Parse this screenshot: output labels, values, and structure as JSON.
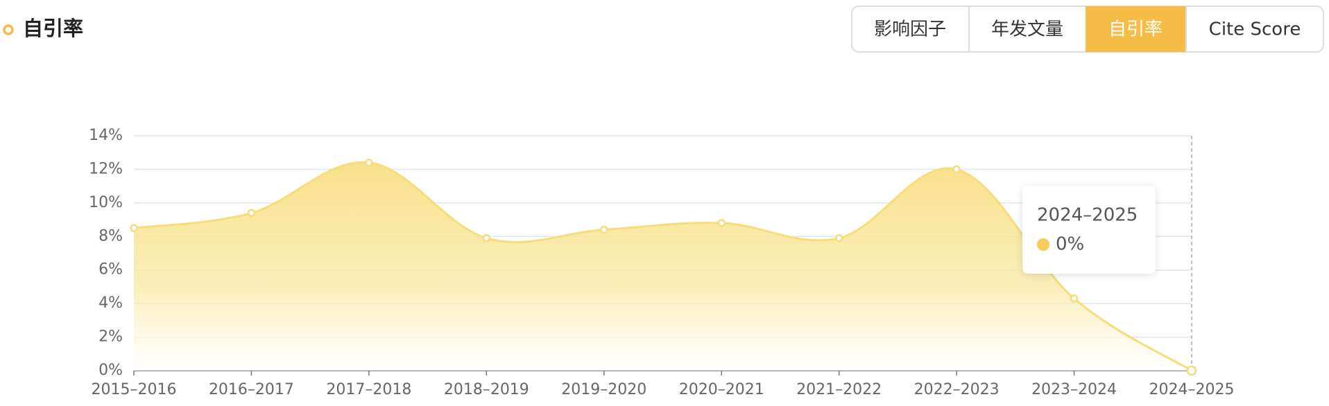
{
  "header": {
    "title": "自引率",
    "tabs": [
      "影响因子",
      "年发文量",
      "自引率",
      "Cite Score"
    ]
  },
  "chart_data": {
    "type": "area",
    "categories": [
      "2015–2016",
      "2016–2017",
      "2017–2018",
      "2018–2019",
      "2019–2020",
      "2020–2021",
      "2021–2022",
      "2022–2023",
      "2023–2024",
      "2024–2025"
    ],
    "values": [
      8.5,
      9.4,
      12.4,
      7.9,
      8.4,
      8.8,
      7.9,
      12.0,
      4.3,
      0
    ],
    "color": "#f7dc77",
    "ylim": [
      0,
      14
    ],
    "yticks": [
      {
        "value": 0,
        "label": "0%"
      },
      {
        "value": 2,
        "label": "2%"
      },
      {
        "value": 4,
        "label": "4%"
      },
      {
        "value": 6,
        "label": "6%"
      },
      {
        "value": 8,
        "label": "8%"
      },
      {
        "value": 10,
        "label": "10%"
      },
      {
        "value": 12,
        "label": "12%"
      },
      {
        "value": 14,
        "label": "14%"
      }
    ],
    "grid": true,
    "tooltip": {
      "title": "2024–2025",
      "value": "0%"
    }
  }
}
